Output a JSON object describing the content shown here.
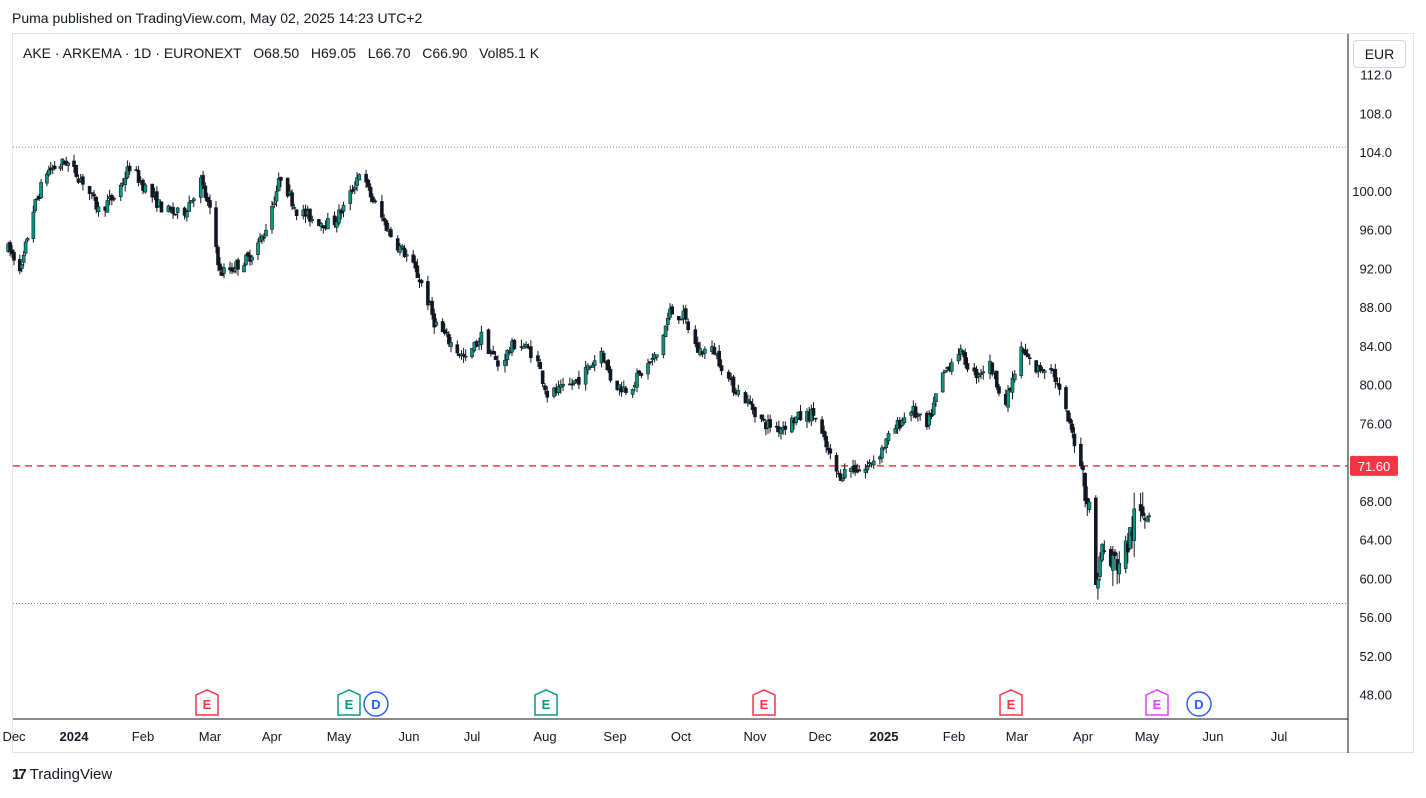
{
  "header": {
    "published": "Puma published on TradingView.com, May 02, 2025 14:23 UTC+2"
  },
  "legend": {
    "symbol": "AKE · ARKEMA · 1D · EURONEXT",
    "o_label": "O",
    "o": "68.50",
    "h_label": "H",
    "h": "69.05",
    "l_label": "L",
    "l": "66.70",
    "c_label": "C",
    "c": "66.90",
    "vol_label": "Vol",
    "vol": "85.1 K"
  },
  "currency": "EUR",
  "footer": {
    "brand_mark": "17",
    "brand_name": "TradingView"
  },
  "chart_data": {
    "type": "candlestick",
    "y_ticks": [
      "112.0",
      "108.0",
      "104.0",
      "100.00",
      "96.00",
      "92.00",
      "88.00",
      "84.00",
      "80.00",
      "76.00",
      "72.00",
      "68.00",
      "64.00",
      "60.00",
      "56.00",
      "52.00",
      "48.00"
    ],
    "y_range": [
      46,
      112.5
    ],
    "x_ticks": [
      {
        "label": "Dec",
        "bold": false
      },
      {
        "label": "2024",
        "bold": true
      },
      {
        "label": "Feb",
        "bold": false
      },
      {
        "label": "Mar",
        "bold": false
      },
      {
        "label": "Apr",
        "bold": false
      },
      {
        "label": "May",
        "bold": false
      },
      {
        "label": "Jun",
        "bold": false
      },
      {
        "label": "Jul",
        "bold": false
      },
      {
        "label": "Aug",
        "bold": false
      },
      {
        "label": "Sep",
        "bold": false
      },
      {
        "label": "Oct",
        "bold": false
      },
      {
        "label": "Nov",
        "bold": false
      },
      {
        "label": "Dec",
        "bold": false
      },
      {
        "label": "2025",
        "bold": true
      },
      {
        "label": "Feb",
        "bold": false
      },
      {
        "label": "Mar",
        "bold": false
      },
      {
        "label": "Apr",
        "bold": false
      },
      {
        "label": "May",
        "bold": false
      },
      {
        "label": "Jun",
        "bold": false
      },
      {
        "label": "Jul",
        "bold": false
      }
    ],
    "price_line": {
      "value": 71.6,
      "label": "71.60",
      "color": "#f23645"
    },
    "horizontal_lines": [
      104.5,
      57.4
    ],
    "up_color": "#089981",
    "down_color": "#f23645",
    "candle_up_color": "#ffffff",
    "candle_down_color": "#131722",
    "events": [
      {
        "type": "E",
        "color": "#f23645",
        "month": "Mar"
      },
      {
        "type": "E",
        "color": "#089981",
        "month": "May"
      },
      {
        "type": "D",
        "color": "#2962ff",
        "month": "May"
      },
      {
        "type": "E",
        "color": "#089981",
        "month": "Aug"
      },
      {
        "type": "E",
        "color": "#f23645",
        "month": "Nov"
      },
      {
        "type": "E",
        "color": "#f23645",
        "month": "Mar 2025"
      },
      {
        "type": "E",
        "color": "#e040fb",
        "month": "May 2025"
      },
      {
        "type": "D",
        "color": "#2962ff",
        "month": "May 2025"
      }
    ],
    "anchors": [
      [
        "2023-11-28",
        94.0
      ],
      [
        "2023-12-05",
        92.0
      ],
      [
        "2023-12-10",
        97.5
      ],
      [
        "2023-12-18",
        102.0
      ],
      [
        "2023-12-28",
        103.0
      ],
      [
        "2024-01-05",
        101.0
      ],
      [
        "2024-01-12",
        98.0
      ],
      [
        "2024-01-20",
        99.5
      ],
      [
        "2024-01-26",
        102.5
      ],
      [
        "2024-02-03",
        100.0
      ],
      [
        "2024-02-10",
        98.0
      ],
      [
        "2024-02-18",
        97.5
      ],
      [
        "2024-02-26",
        101.0
      ],
      [
        "2024-03-02",
        97.0
      ],
      [
        "2024-03-06",
        91.5
      ],
      [
        "2024-03-12",
        92.0
      ],
      [
        "2024-03-20",
        93.0
      ],
      [
        "2024-03-28",
        95.5
      ],
      [
        "2024-04-05",
        101.5
      ],
      [
        "2024-04-12",
        98.0
      ],
      [
        "2024-04-20",
        97.0
      ],
      [
        "2024-04-28",
        96.5
      ],
      [
        "2024-05-05",
        99.0
      ],
      [
        "2024-05-10",
        102.0
      ],
      [
        "2024-05-17",
        98.5
      ],
      [
        "2024-05-25",
        95.0
      ],
      [
        "2024-06-01",
        93.0
      ],
      [
        "2024-06-08",
        90.0
      ],
      [
        "2024-06-13",
        86.5
      ],
      [
        "2024-06-20",
        84.5
      ],
      [
        "2024-06-28",
        82.5
      ],
      [
        "2024-07-05",
        85.0
      ],
      [
        "2024-07-12",
        82.0
      ],
      [
        "2024-07-20",
        84.5
      ],
      [
        "2024-07-28",
        83.0
      ],
      [
        "2024-08-02",
        79.0
      ],
      [
        "2024-08-10",
        79.5
      ],
      [
        "2024-08-18",
        81.0
      ],
      [
        "2024-08-26",
        83.5
      ],
      [
        "2024-08-31",
        80.0
      ],
      [
        "2024-09-07",
        79.5
      ],
      [
        "2024-09-14",
        81.5
      ],
      [
        "2024-09-20",
        83.0
      ],
      [
        "2024-09-26",
        87.5
      ],
      [
        "2024-10-02",
        87.0
      ],
      [
        "2024-10-08",
        83.5
      ],
      [
        "2024-10-15",
        83.5
      ],
      [
        "2024-10-22",
        80.0
      ],
      [
        "2024-10-28",
        78.5
      ],
      [
        "2024-11-05",
        76.0
      ],
      [
        "2024-11-12",
        75.5
      ],
      [
        "2024-11-20",
        76.5
      ],
      [
        "2024-11-28",
        77.0
      ],
      [
        "2024-12-04",
        73.5
      ],
      [
        "2024-12-10",
        70.5
      ],
      [
        "2024-12-16",
        71.5
      ],
      [
        "2024-12-22",
        71.0
      ],
      [
        "2024-12-30",
        73.0
      ],
      [
        "2025-01-06",
        75.5
      ],
      [
        "2025-01-13",
        77.5
      ],
      [
        "2025-01-20",
        75.5
      ],
      [
        "2025-01-27",
        81.0
      ],
      [
        "2025-02-03",
        83.5
      ],
      [
        "2025-02-10",
        81.0
      ],
      [
        "2025-02-17",
        82.0
      ],
      [
        "2025-02-24",
        78.0
      ],
      [
        "2025-03-03",
        83.5
      ],
      [
        "2025-03-10",
        81.5
      ],
      [
        "2025-03-17",
        82.0
      ],
      [
        "2025-03-24",
        77.0
      ],
      [
        "2025-03-31",
        72.0
      ],
      [
        "2025-04-04",
        67.0
      ],
      [
        "2025-04-07",
        59.5
      ],
      [
        "2025-04-10",
        63.0
      ],
      [
        "2025-04-14",
        61.5
      ],
      [
        "2025-04-20",
        62.0
      ],
      [
        "2025-04-25",
        66.0
      ],
      [
        "2025-05-02",
        66.9
      ]
    ]
  }
}
